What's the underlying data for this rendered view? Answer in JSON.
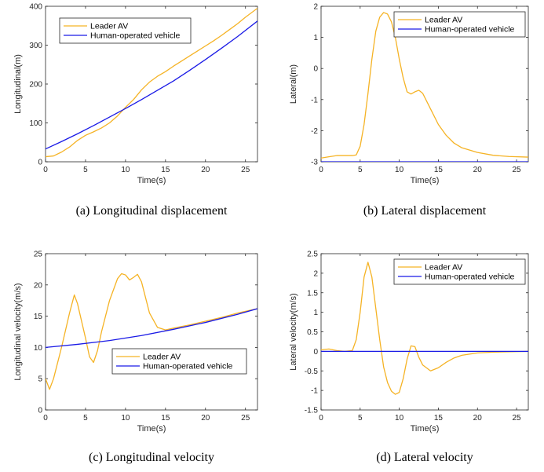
{
  "colors": {
    "leader": "#f5b325",
    "human": "#1a1ae6",
    "axis": "#262626"
  },
  "chart_data": [
    {
      "type": "line",
      "caption": "(a) Longitudinal displacement",
      "xlabel": "Time(s)",
      "ylabel": "Longitudinal(m)",
      "xlim": [
        0,
        26.5
      ],
      "ylim": [
        0,
        400
      ],
      "xticks": [
        0,
        5,
        10,
        15,
        20,
        25
      ],
      "yticks": [
        0,
        100,
        200,
        300,
        400
      ],
      "legend_position": "top-left",
      "series": [
        {
          "name": "Leader AV",
          "color": "leader",
          "points": [
            [
              0,
              13
            ],
            [
              1,
              15
            ],
            [
              2,
              25
            ],
            [
              3,
              38
            ],
            [
              4,
              55
            ],
            [
              5,
              68
            ],
            [
              6,
              77
            ],
            [
              7,
              87
            ],
            [
              8,
              100
            ],
            [
              9,
              118
            ],
            [
              10,
              140
            ],
            [
              11,
              160
            ],
            [
              12,
              185
            ],
            [
              13,
              205
            ],
            [
              14,
              220
            ],
            [
              15,
              232
            ],
            [
              16,
              246
            ],
            [
              17,
              259
            ],
            [
              18,
              272
            ],
            [
              19,
              285
            ],
            [
              20,
              298
            ],
            [
              21,
              311
            ],
            [
              22,
              325
            ],
            [
              23,
              340
            ],
            [
              24,
              355
            ],
            [
              25,
              372
            ],
            [
              26.5,
              395
            ]
          ]
        },
        {
          "name": "Human-operated vehicle",
          "color": "human",
          "points": [
            [
              0,
              33
            ],
            [
              2,
              52
            ],
            [
              4,
              72
            ],
            [
              6,
              93
            ],
            [
              8,
              115
            ],
            [
              10,
              137
            ],
            [
              12,
              160
            ],
            [
              14,
              184
            ],
            [
              16,
              208
            ],
            [
              18,
              235
            ],
            [
              20,
              263
            ],
            [
              22,
              292
            ],
            [
              24,
              322
            ],
            [
              26.5,
              362
            ]
          ]
        }
      ]
    },
    {
      "type": "line",
      "caption": "(b) Lateral displacement",
      "xlabel": "Time(s)",
      "ylabel": "Lateral(m)",
      "xlim": [
        0,
        26.5
      ],
      "ylim": [
        -3,
        2
      ],
      "xticks": [
        0,
        5,
        10,
        15,
        20,
        25
      ],
      "yticks": [
        -3,
        -2,
        -1,
        0,
        1,
        2
      ],
      "legend_position": "top-right",
      "series": [
        {
          "name": "Leader AV",
          "color": "leader",
          "points": [
            [
              0,
              -2.88
            ],
            [
              1,
              -2.84
            ],
            [
              2,
              -2.8
            ],
            [
              3,
              -2.8
            ],
            [
              4,
              -2.8
            ],
            [
              4.5,
              -2.78
            ],
            [
              5,
              -2.5
            ],
            [
              5.5,
              -1.8
            ],
            [
              6,
              -0.8
            ],
            [
              6.5,
              0.3
            ],
            [
              7,
              1.2
            ],
            [
              7.5,
              1.65
            ],
            [
              8,
              1.8
            ],
            [
              8.5,
              1.75
            ],
            [
              9,
              1.5
            ],
            [
              9.5,
              1.0
            ],
            [
              10,
              0.3
            ],
            [
              10.5,
              -0.3
            ],
            [
              11,
              -0.75
            ],
            [
              11.5,
              -0.82
            ],
            [
              12,
              -0.75
            ],
            [
              12.5,
              -0.7
            ],
            [
              13,
              -0.8
            ],
            [
              14,
              -1.3
            ],
            [
              15,
              -1.8
            ],
            [
              16,
              -2.15
            ],
            [
              17,
              -2.4
            ],
            [
              18,
              -2.55
            ],
            [
              20,
              -2.7
            ],
            [
              22,
              -2.79
            ],
            [
              24,
              -2.83
            ],
            [
              26.5,
              -2.85
            ]
          ]
        },
        {
          "name": "Human-operated vehicle",
          "color": "human",
          "points": [
            [
              0,
              -3
            ],
            [
              26.5,
              -3
            ]
          ]
        }
      ]
    },
    {
      "type": "line",
      "caption": "(c) Longitudinal velocity",
      "xlabel": "Time(s)",
      "ylabel": "Longitudinal velocity(m/s)",
      "xlim": [
        0,
        26.5
      ],
      "ylim": [
        0,
        25
      ],
      "xticks": [
        0,
        5,
        10,
        15,
        20,
        25
      ],
      "yticks": [
        0,
        5,
        10,
        15,
        20,
        25
      ],
      "legend_position": "bottom-right",
      "series": [
        {
          "name": "Leader AV",
          "color": "leader",
          "points": [
            [
              0,
              5
            ],
            [
              0.5,
              3.3
            ],
            [
              1,
              5
            ],
            [
              2,
              10
            ],
            [
              3,
              15.5
            ],
            [
              3.6,
              18.4
            ],
            [
              4,
              17
            ],
            [
              5,
              11.5
            ],
            [
              5.5,
              8.5
            ],
            [
              6,
              7.6
            ],
            [
              6.5,
              9.5
            ],
            [
              7,
              12.5
            ],
            [
              8,
              17.5
            ],
            [
              9,
              21
            ],
            [
              9.5,
              21.8
            ],
            [
              10,
              21.6
            ],
            [
              10.5,
              20.8
            ],
            [
              11,
              21.2
            ],
            [
              11.5,
              21.7
            ],
            [
              12,
              20.5
            ],
            [
              12.5,
              18
            ],
            [
              13,
              15.5
            ],
            [
              14,
              13.2
            ],
            [
              15,
              12.8
            ],
            [
              16,
              13.1
            ],
            [
              18,
              13.6
            ],
            [
              20,
              14.2
            ],
            [
              22,
              14.8
            ],
            [
              24,
              15.5
            ],
            [
              26.5,
              16.2
            ]
          ]
        },
        {
          "name": "Human-operated vehicle",
          "color": "human",
          "points": [
            [
              0,
              10
            ],
            [
              4,
              10.5
            ],
            [
              8,
              11.1
            ],
            [
              12,
              11.9
            ],
            [
              16,
              12.9
            ],
            [
              20,
              14.0
            ],
            [
              24,
              15.3
            ],
            [
              26.5,
              16.2
            ]
          ]
        }
      ]
    },
    {
      "type": "line",
      "caption": "(d) Lateral velocity",
      "xlabel": "Time(s)",
      "ylabel": "Lateral velocity(m/s)",
      "xlim": [
        0,
        26.5
      ],
      "ylim": [
        -1.5,
        2.5
      ],
      "xticks": [
        0,
        5,
        10,
        15,
        20,
        25
      ],
      "yticks": [
        -1.5,
        -1,
        -0.5,
        0,
        0.5,
        1,
        1.5,
        2,
        2.5
      ],
      "legend_position": "top-right",
      "series": [
        {
          "name": "Leader AV",
          "color": "leader",
          "points": [
            [
              0,
              0.04
            ],
            [
              1,
              0.06
            ],
            [
              2,
              0.02
            ],
            [
              3,
              0
            ],
            [
              4,
              0.02
            ],
            [
              4.5,
              0.3
            ],
            [
              5,
              1.0
            ],
            [
              5.5,
              1.9
            ],
            [
              6,
              2.28
            ],
            [
              6.5,
              1.9
            ],
            [
              7,
              1.1
            ],
            [
              7.5,
              0.3
            ],
            [
              8,
              -0.4
            ],
            [
              8.5,
              -0.8
            ],
            [
              9,
              -1.02
            ],
            [
              9.5,
              -1.1
            ],
            [
              10,
              -1.05
            ],
            [
              10.5,
              -0.7
            ],
            [
              11,
              -0.2
            ],
            [
              11.5,
              0.14
            ],
            [
              12,
              0.12
            ],
            [
              12.5,
              -0.15
            ],
            [
              13,
              -0.35
            ],
            [
              14,
              -0.5
            ],
            [
              15,
              -0.42
            ],
            [
              16,
              -0.28
            ],
            [
              17,
              -0.17
            ],
            [
              18,
              -0.1
            ],
            [
              20,
              -0.04
            ],
            [
              22,
              -0.02
            ],
            [
              26.5,
              0
            ]
          ]
        },
        {
          "name": "Human-operated vehicle",
          "color": "human",
          "points": [
            [
              0,
              0
            ],
            [
              26.5,
              0
            ]
          ]
        }
      ]
    }
  ]
}
